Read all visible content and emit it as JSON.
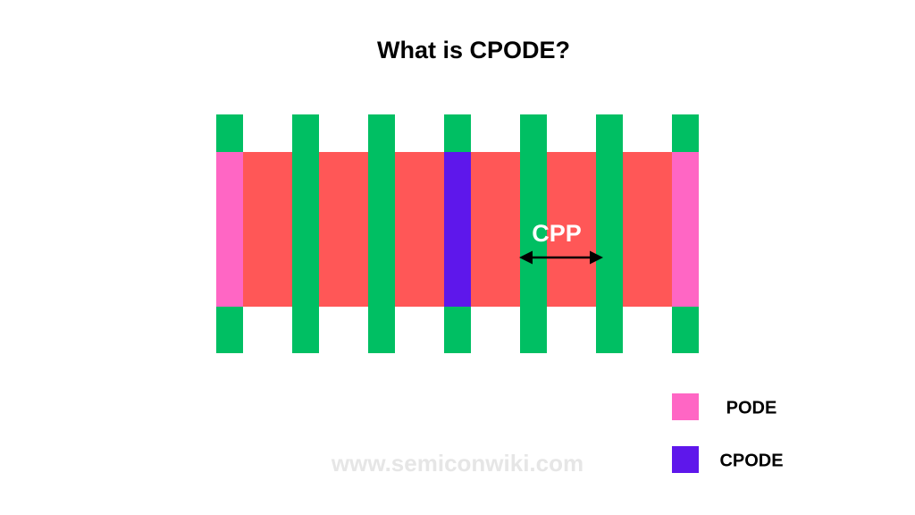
{
  "title": "What is CPODE?",
  "diagram": {
    "pitch_label": "CPP"
  },
  "legend": [
    {
      "label": "PODE"
    },
    {
      "label": "CPODE"
    }
  ],
  "watermark": "www.semiconwiki.com"
}
